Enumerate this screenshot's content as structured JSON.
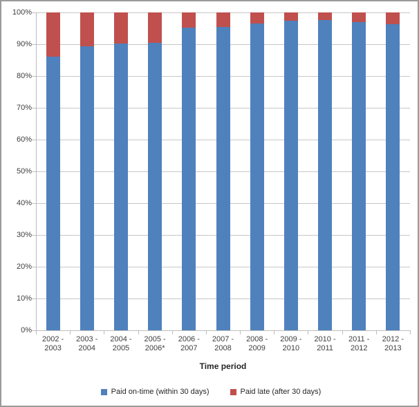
{
  "chart_data": {
    "type": "bar",
    "stacked": true,
    "title": "",
    "categories": [
      "2002 - 2003",
      "2003 - 2004",
      "2004 - 2005",
      "2005 - 2006*",
      "2006 - 2007",
      "2007 - 2008",
      "2008 - 2009",
      "2009 - 2010",
      "2010 - 2011",
      "2011 - 2012",
      "2012 - 2013"
    ],
    "series": [
      {
        "name": "Paid on-time (within 30 days)",
        "color": "#4F81BD",
        "values": [
          86.1,
          89.3,
          90.2,
          90.4,
          95.3,
          95.4,
          96.5,
          97.3,
          97.6,
          96.9,
          96.2
        ]
      },
      {
        "name": "Paid late (after 30 days)",
        "color": "#C0504D",
        "values": [
          13.9,
          10.7,
          9.8,
          9.6,
          4.7,
          4.6,
          3.5,
          2.7,
          2.4,
          3.1,
          3.8
        ]
      }
    ],
    "xlabel": "Time period",
    "ylabel": "",
    "ylim": [
      0,
      100
    ],
    "ytick_step": 10,
    "ytick_suffix": "%",
    "grid": true,
    "legend_position": "bottom"
  },
  "colors": {
    "gridline": "#C6C6C6",
    "axis_line": "#BDBDBD",
    "tick_text": "#3D3D3D",
    "frame_border": "#9A9A9A",
    "background": "#FFFFFF"
  }
}
